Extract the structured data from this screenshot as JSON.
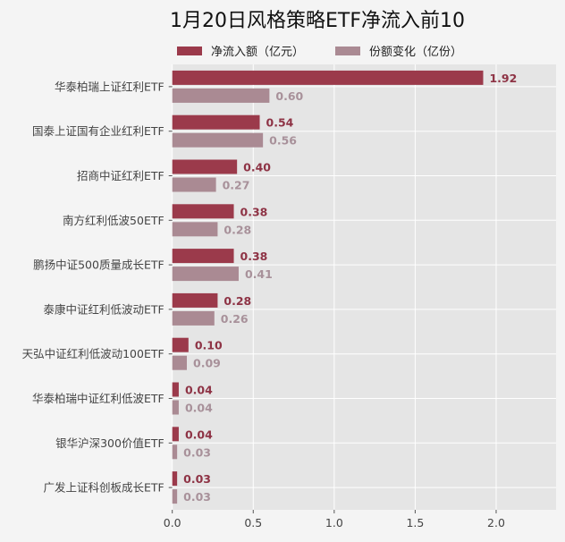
{
  "chart_data": {
    "type": "bar",
    "orientation": "horizontal",
    "title": "1月20日风格策略ETF净流入前10",
    "categories": [
      "华泰柏瑞上证红利ETF",
      "国泰上证国有企业红利ETF",
      "招商中证红利ETF",
      "南方红利低波50ETF",
      "鹏扬中证500质量成长ETF",
      "泰康中证红利低波动ETF",
      "天弘中证红利低波动100ETF",
      "华泰柏瑞中证红利低波ETF",
      "银华沪深300价值ETF",
      "广发上证科创板成长ETF"
    ],
    "series": [
      {
        "name": "净流入额（亿元）",
        "color": "#9b3a4b",
        "values": [
          1.92,
          0.54,
          0.4,
          0.38,
          0.38,
          0.28,
          0.1,
          0.04,
          0.04,
          0.03
        ],
        "labels": [
          "1.92",
          "0.54",
          "0.40",
          "0.38",
          "0.38",
          "0.28",
          "0.10",
          "0.04",
          "0.04",
          "0.03"
        ]
      },
      {
        "name": "份额变化（亿份）",
        "color": "#aa8a93",
        "values": [
          0.6,
          0.56,
          0.27,
          0.28,
          0.41,
          0.26,
          0.09,
          0.04,
          0.03,
          0.03
        ],
        "labels": [
          "0.60",
          "0.56",
          "0.27",
          "0.28",
          "0.41",
          "0.26",
          "0.09",
          "0.04",
          "0.03",
          "0.03"
        ]
      }
    ],
    "xlim": [
      0,
      2.37
    ],
    "xticks": [
      "0.0",
      "0.5",
      "1.0",
      "1.5",
      "2.0"
    ],
    "xtick_values": [
      0,
      0.5,
      1.0,
      1.5,
      2.0
    ],
    "grid": true,
    "legend": "top",
    "xlabel": "",
    "ylabel": ""
  }
}
